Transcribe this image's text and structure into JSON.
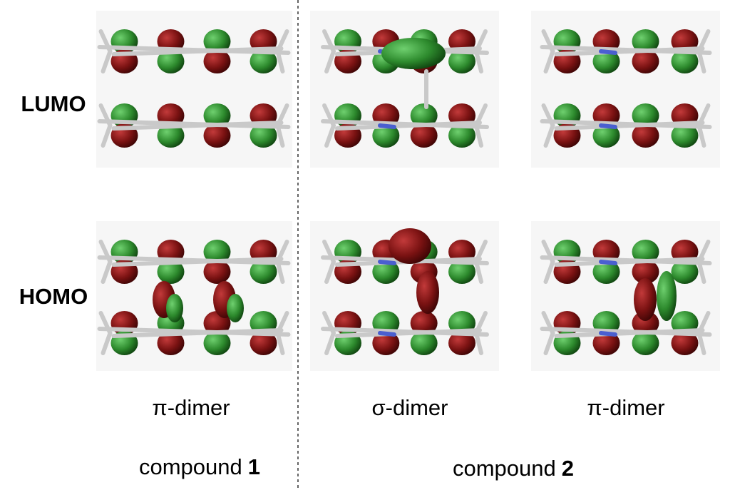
{
  "row_labels": [
    "LUMO",
    "HOMO"
  ],
  "column_labels": [
    "π-dimer",
    "σ-dimer",
    "π-dimer"
  ],
  "groups": [
    {
      "text": "compound",
      "number": "1"
    },
    {
      "text": "compound",
      "number": "2"
    }
  ]
}
